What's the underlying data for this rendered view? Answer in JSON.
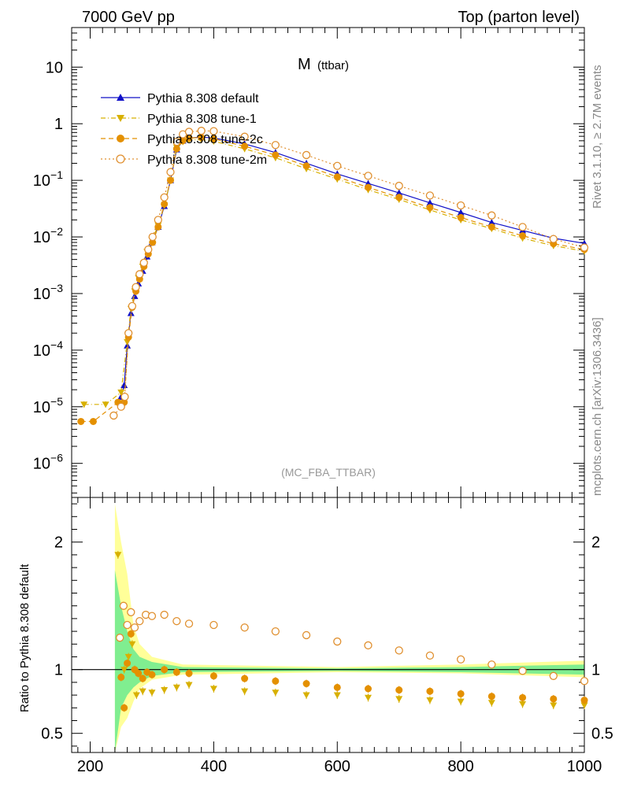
{
  "header": {
    "left": "7000 GeV pp",
    "right": "Top (parton level)"
  },
  "side_labels": {
    "rivet": "Rivet 3.1.10, ≥ 2.7M events",
    "mcplots": "mcplots.cern.ch [arXiv:1306.3436]"
  },
  "colors": {
    "default": "#1010c8",
    "tune1": "#d8b000",
    "tune2c": "#e49000",
    "tune2m": "#e09030",
    "band_yellow": "#ffff99",
    "band_green": "#80ee90"
  },
  "chart_data": [
    {
      "type": "scatter",
      "panel": "main",
      "title": "M (ttbar)",
      "title_main": "M",
      "title_sub": "(ttbar)",
      "annotation": "(MC_FBA_TTBAR)",
      "xlim": [
        170,
        1000
      ],
      "ylim": [
        2.5e-07,
        50
      ],
      "yscale": "log",
      "yticks": [
        1e-06,
        1e-05,
        0.0001,
        0.001,
        0.01,
        0.1,
        1,
        10
      ],
      "ytick_labels": [
        {
          "base": "10",
          "exp": "−6"
        },
        {
          "base": "10",
          "exp": "−5"
        },
        {
          "base": "10",
          "exp": "−4"
        },
        {
          "base": "10",
          "exp": "−3"
        },
        {
          "base": "10",
          "exp": "−2"
        },
        {
          "base": "10",
          "exp": "−1"
        },
        {
          "base": "1",
          "exp": ""
        },
        {
          "base": "10",
          "exp": ""
        }
      ],
      "legend_position": "top-left",
      "series": [
        {
          "name": "Pythia 8.308 default",
          "color": "#1010c8",
          "marker": "triangle-up",
          "line": "solid",
          "points": [
            [
              250,
              1.5e-05
            ],
            [
              255,
              2.4e-05
            ],
            [
              260,
              0.00012
            ],
            [
              266,
              0.00045
            ],
            [
              272,
              0.0009
            ],
            [
              278,
              0.0015
            ],
            [
              285,
              0.0025
            ],
            [
              292,
              0.0045
            ],
            [
              300,
              0.008
            ],
            [
              310,
              0.015
            ],
            [
              320,
              0.035
            ],
            [
              330,
              0.1
            ],
            [
              340,
              0.35
            ],
            [
              350,
              0.5
            ],
            [
              360,
              0.56
            ],
            [
              380,
              0.58
            ],
            [
              400,
              0.56
            ],
            [
              450,
              0.44
            ],
            [
              500,
              0.31
            ],
            [
              550,
              0.2
            ],
            [
              600,
              0.13
            ],
            [
              650,
              0.088
            ],
            [
              700,
              0.06
            ],
            [
              750,
              0.04
            ],
            [
              800,
              0.027
            ],
            [
              850,
              0.018
            ],
            [
              900,
              0.013
            ],
            [
              950,
              0.0095
            ],
            [
              1000,
              0.0077
            ]
          ]
        },
        {
          "name": "Pythia 8.308 tune-1",
          "color": "#d8b000",
          "marker": "triangle-down",
          "line": "dashdot",
          "points": [
            [
              190,
              1.1e-05
            ],
            [
              225,
              1.1e-05
            ],
            [
              250,
              1.8e-05
            ],
            [
              260,
              0.00014
            ],
            [
              266,
              0.00054
            ],
            [
              272,
              0.0011
            ],
            [
              278,
              0.0019
            ],
            [
              285,
              0.003
            ],
            [
              292,
              0.0055
            ],
            [
              300,
              0.0088
            ],
            [
              310,
              0.016
            ],
            [
              320,
              0.036
            ],
            [
              330,
              0.1
            ],
            [
              340,
              0.38
            ],
            [
              350,
              0.48
            ],
            [
              360,
              0.52
            ],
            [
              380,
              0.52
            ],
            [
              400,
              0.49
            ],
            [
              450,
              0.36
            ],
            [
              500,
              0.25
            ],
            [
              550,
              0.16
            ],
            [
              600,
              0.105
            ],
            [
              650,
              0.068
            ],
            [
              700,
              0.046
            ],
            [
              750,
              0.03
            ],
            [
              800,
              0.02
            ],
            [
              850,
              0.014
            ],
            [
              900,
              0.0095
            ],
            [
              950,
              0.007
            ],
            [
              1000,
              0.0056
            ]
          ]
        },
        {
          "name": "Pythia 8.308 tune-2c",
          "color": "#e49000",
          "marker": "circle",
          "line": "dashed",
          "points": [
            [
              185,
              5.5e-06
            ],
            [
              205,
              5.5e-06
            ],
            [
              245,
              1.2e-05
            ],
            [
              255,
              1.2e-05
            ],
            [
              262,
              0.00017
            ],
            [
              268,
              0.00057
            ],
            [
              274,
              0.0011
            ],
            [
              280,
              0.0018
            ],
            [
              287,
              0.003
            ],
            [
              294,
              0.005
            ],
            [
              301,
              0.008
            ],
            [
              310,
              0.015
            ],
            [
              320,
              0.038
            ],
            [
              330,
              0.1
            ],
            [
              340,
              0.36
            ],
            [
              350,
              0.5
            ],
            [
              360,
              0.56
            ],
            [
              380,
              0.57
            ],
            [
              400,
              0.54
            ],
            [
              450,
              0.4
            ],
            [
              500,
              0.28
            ],
            [
              550,
              0.18
            ],
            [
              600,
              0.115
            ],
            [
              650,
              0.075
            ],
            [
              700,
              0.05
            ],
            [
              750,
              0.033
            ],
            [
              800,
              0.022
            ],
            [
              850,
              0.015
            ],
            [
              900,
              0.0105
            ],
            [
              950,
              0.0076
            ],
            [
              1000,
              0.006
            ]
          ]
        },
        {
          "name": "Pythia 8.308 tune-2m",
          "color": "#e09030",
          "marker": "circle-open",
          "line": "dotted",
          "points": [
            [
              238,
              7e-06
            ],
            [
              250,
              1e-05
            ],
            [
              256,
              1.5e-05
            ],
            [
              262,
              0.0002
            ],
            [
              268,
              0.0006
            ],
            [
              274,
              0.0013
            ],
            [
              280,
              0.0022
            ],
            [
              287,
              0.0035
            ],
            [
              294,
              0.006
            ],
            [
              301,
              0.01
            ],
            [
              310,
              0.02
            ],
            [
              320,
              0.05
            ],
            [
              330,
              0.14
            ],
            [
              340,
              0.48
            ],
            [
              350,
              0.65
            ],
            [
              360,
              0.72
            ],
            [
              380,
              0.75
            ],
            [
              400,
              0.74
            ],
            [
              450,
              0.59
            ],
            [
              500,
              0.42
            ],
            [
              550,
              0.28
            ],
            [
              600,
              0.18
            ],
            [
              650,
              0.12
            ],
            [
              700,
              0.08
            ],
            [
              750,
              0.054
            ],
            [
              800,
              0.036
            ],
            [
              850,
              0.024
            ],
            [
              900,
              0.015
            ],
            [
              950,
              0.0092
            ],
            [
              1000,
              0.0065
            ]
          ]
        }
      ]
    },
    {
      "type": "scatter",
      "panel": "ratio",
      "ylabel": "Ratio to Pythia 8.308 default",
      "xlim": [
        170,
        1000
      ],
      "ylim": [
        0.35,
        2.35
      ],
      "yticks": [
        0.5,
        1,
        2
      ],
      "ytick_labels": [
        "0.5",
        "1",
        "2"
      ],
      "xticks": [
        200,
        400,
        600,
        800,
        1000
      ],
      "xtick_labels": [
        "200",
        "400",
        "600",
        "800",
        "1000"
      ],
      "reference_line": 1,
      "band": {
        "yellow": [
          [
            240,
            0.35,
            2.3
          ],
          [
            250,
            0.55,
            2.0
          ],
          [
            260,
            0.62,
            1.75
          ],
          [
            270,
            0.75,
            1.35
          ],
          [
            280,
            0.85,
            1.2
          ],
          [
            300,
            0.92,
            1.1
          ],
          [
            350,
            0.96,
            1.04
          ],
          [
            600,
            0.98,
            1.02
          ],
          [
            800,
            0.97,
            1.04
          ],
          [
            1000,
            0.94,
            1.07
          ]
        ],
        "green": [
          [
            240,
            0.35,
            1.78
          ],
          [
            250,
            0.7,
            1.5
          ],
          [
            260,
            0.8,
            1.3
          ],
          [
            270,
            0.86,
            1.16
          ],
          [
            280,
            0.9,
            1.1
          ],
          [
            300,
            0.95,
            1.06
          ],
          [
            350,
            0.98,
            1.02
          ],
          [
            600,
            0.99,
            1.01
          ],
          [
            800,
            0.98,
            1.02
          ],
          [
            1000,
            0.96,
            1.04
          ]
        ]
      },
      "series": [
        {
          "name": "Pythia 8.308 tune-1",
          "color": "#d8b000",
          "marker": "triangle-down",
          "points": [
            [
              245,
              1.9
            ],
            [
              255,
              1.0
            ],
            [
              262,
              1.1
            ],
            [
              268,
              1.2
            ],
            [
              275,
              0.8
            ],
            [
              285,
              0.83
            ],
            [
              300,
              0.82
            ],
            [
              320,
              0.84
            ],
            [
              340,
              0.86
            ],
            [
              360,
              0.88
            ],
            [
              400,
              0.85
            ],
            [
              450,
              0.83
            ],
            [
              500,
              0.82
            ],
            [
              550,
              0.8
            ],
            [
              600,
              0.8
            ],
            [
              650,
              0.78
            ],
            [
              700,
              0.77
            ],
            [
              750,
              0.76
            ],
            [
              800,
              0.75
            ],
            [
              850,
              0.74
            ],
            [
              900,
              0.73
            ],
            [
              950,
              0.72
            ],
            [
              1000,
              0.72
            ]
          ]
        },
        {
          "name": "Pythia 8.308 tune-2c",
          "color": "#e49000",
          "marker": "circle",
          "points": [
            [
              250,
              0.94
            ],
            [
              255,
              0.7
            ],
            [
              260,
              1.05
            ],
            [
              266,
              1.28
            ],
            [
              272,
              1.0
            ],
            [
              278,
              0.97
            ],
            [
              285,
              0.93
            ],
            [
              292,
              0.98
            ],
            [
              300,
              0.96
            ],
            [
              320,
              1.0
            ],
            [
              340,
              0.98
            ],
            [
              360,
              0.97
            ],
            [
              400,
              0.95
            ],
            [
              450,
              0.93
            ],
            [
              500,
              0.91
            ],
            [
              550,
              0.89
            ],
            [
              600,
              0.86
            ],
            [
              650,
              0.85
            ],
            [
              700,
              0.84
            ],
            [
              750,
              0.83
            ],
            [
              800,
              0.81
            ],
            [
              850,
              0.79
            ],
            [
              900,
              0.78
            ],
            [
              950,
              0.77
            ],
            [
              1000,
              0.76
            ]
          ]
        },
        {
          "name": "Pythia 8.308 tune-2m",
          "color": "#e09030",
          "marker": "circle-open",
          "points": [
            [
              248,
              1.25
            ],
            [
              254,
              1.5
            ],
            [
              260,
              1.35
            ],
            [
              266,
              1.45
            ],
            [
              272,
              1.33
            ],
            [
              280,
              1.38
            ],
            [
              290,
              1.43
            ],
            [
              300,
              1.42
            ],
            [
              320,
              1.43
            ],
            [
              340,
              1.38
            ],
            [
              360,
              1.36
            ],
            [
              400,
              1.35
            ],
            [
              450,
              1.33
            ],
            [
              500,
              1.3
            ],
            [
              550,
              1.27
            ],
            [
              600,
              1.22
            ],
            [
              650,
              1.19
            ],
            [
              700,
              1.15
            ],
            [
              750,
              1.11
            ],
            [
              800,
              1.08
            ],
            [
              850,
              1.04
            ],
            [
              900,
              0.99
            ],
            [
              950,
              0.95
            ],
            [
              1000,
              0.91
            ]
          ]
        }
      ]
    }
  ]
}
